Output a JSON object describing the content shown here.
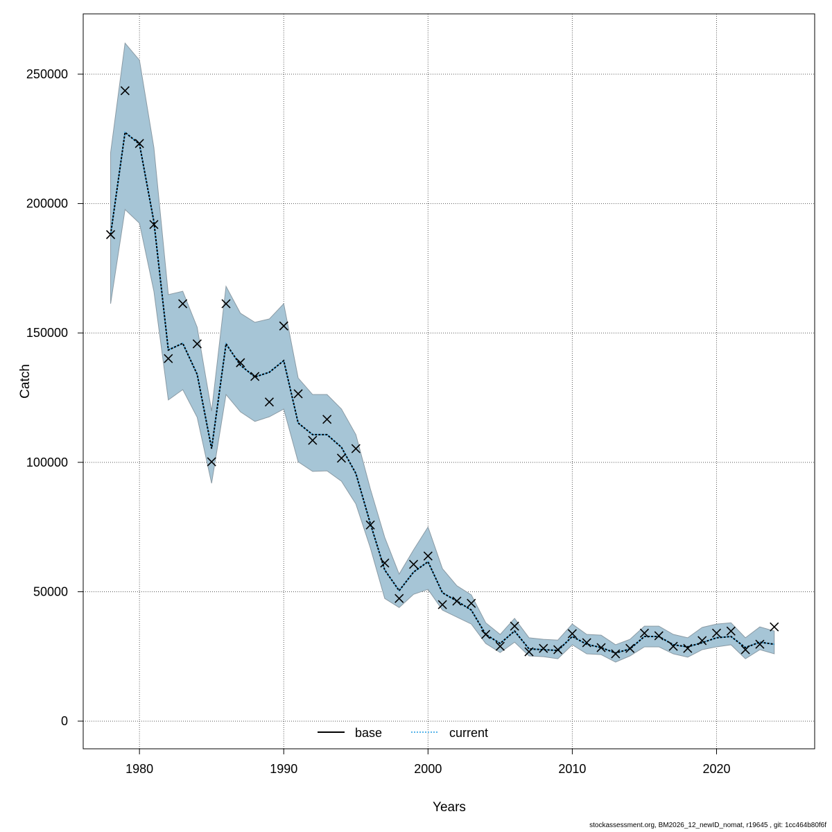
{
  "chart_data": {
    "type": "line",
    "title": "",
    "xlabel": "Years",
    "ylabel": "Catch",
    "xlim": [
      1976.1,
      2026.8
    ],
    "ylim": [
      -10700,
      273300
    ],
    "xticks": [
      1980,
      1990,
      2000,
      2010,
      2020
    ],
    "yticks": [
      0,
      50000,
      100000,
      150000,
      200000,
      250000
    ],
    "grid": true,
    "legend_position": "bottom-center",
    "colors": {
      "band": "#a6c5d6",
      "band_edge": "#8a9aa4",
      "base": "#000000",
      "current": "#56b4e9",
      "grid": "#555555"
    },
    "x": [
      1978,
      1979,
      1980,
      1981,
      1982,
      1983,
      1984,
      1985,
      1986,
      1987,
      1988,
      1989,
      1990,
      1991,
      1992,
      1993,
      1994,
      1995,
      1996,
      1997,
      1998,
      1999,
      2000,
      2001,
      2002,
      2003,
      2004,
      2005,
      2006,
      2007,
      2008,
      2009,
      2010,
      2011,
      2012,
      2013,
      2014,
      2015,
      2016,
      2017,
      2018,
      2019,
      2020,
      2021,
      2022,
      2023,
      2024
    ],
    "observed": [
      188000,
      243600,
      223200,
      191900,
      140100,
      161300,
      145800,
      100200,
      161300,
      138500,
      133200,
      123300,
      152700,
      126500,
      108500,
      116600,
      101600,
      105300,
      75800,
      61100,
      47400,
      60600,
      63800,
      45000,
      46400,
      45500,
      33500,
      28900,
      36700,
      26800,
      28100,
      27600,
      33800,
      30300,
      28400,
      26000,
      28100,
      34000,
      33000,
      28900,
      28100,
      31100,
      34000,
      34800,
      27600,
      29700,
      36400
    ],
    "series": [
      {
        "name": "base",
        "values": [
          188000,
          227500,
          223000,
          193000,
          143400,
          146000,
          134000,
          105300,
          145800,
          137500,
          133000,
          134800,
          139300,
          115200,
          110700,
          110700,
          105800,
          95700,
          76400,
          58400,
          50400,
          57600,
          61600,
          49600,
          46400,
          42900,
          33500,
          30000,
          34800,
          27900,
          27600,
          27300,
          32700,
          29700,
          28400,
          26300,
          27900,
          32700,
          32700,
          29500,
          28700,
          30300,
          32200,
          32700,
          28400,
          30500,
          29700
        ]
      },
      {
        "name": "current",
        "values": [
          188000,
          227500,
          223000,
          193000,
          143400,
          146000,
          134000,
          105300,
          145800,
          137500,
          133000,
          134800,
          139300,
          115200,
          110700,
          110700,
          105800,
          95700,
          76400,
          58400,
          50400,
          57600,
          61600,
          49600,
          46400,
          42900,
          33500,
          30000,
          34800,
          27900,
          27600,
          27300,
          32700,
          29700,
          28400,
          26300,
          27900,
          32700,
          32700,
          29500,
          28700,
          30300,
          32200,
          32700,
          28400,
          30500,
          29700
        ]
      }
    ],
    "upper": [
      219700,
      262000,
      255400,
      221600,
      164800,
      166100,
      152200,
      119800,
      168000,
      157600,
      154100,
      155400,
      161300,
      132600,
      126200,
      126200,
      120600,
      110700,
      89800,
      71000,
      56800,
      66200,
      75000,
      58900,
      52300,
      48800,
      38000,
      33500,
      39700,
      32200,
      31600,
      31300,
      37500,
      33500,
      33200,
      29500,
      31600,
      36700,
      36700,
      33500,
      32200,
      36200,
      37500,
      38000,
      32200,
      36400,
      34800
    ],
    "lower": [
      161300,
      197700,
      192400,
      166100,
      124100,
      128100,
      117400,
      91900,
      126200,
      119500,
      115800,
      117600,
      120600,
      100200,
      96500,
      96700,
      92700,
      83900,
      67000,
      47400,
      43900,
      49000,
      50900,
      42900,
      40200,
      37500,
      30000,
      26500,
      30500,
      25200,
      24900,
      24100,
      29500,
      26000,
      25700,
      22800,
      25200,
      28700,
      28700,
      26000,
      24700,
      27600,
      28700,
      29500,
      24100,
      27600,
      26000
    ]
  },
  "footer": "stockassessment.org, BM2026_12_newID_nomat, r19645 , git: 1cc464b80f6f"
}
